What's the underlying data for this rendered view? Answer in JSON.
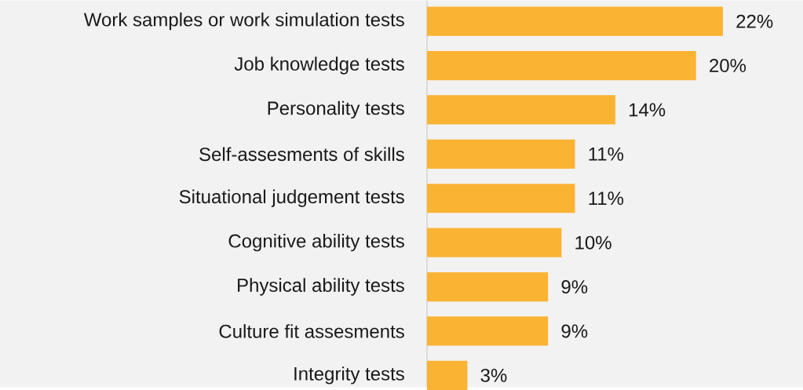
{
  "chart_data": {
    "type": "bar",
    "orientation": "horizontal",
    "categories": [
      "Work samples or work simulation tests",
      "Job knowledge tests",
      "Personality tests",
      "Self-assesments of skills",
      "Situational judgement tests",
      "Cognitive ability tests",
      "Physical ability tests",
      "Culture fit assesments",
      "Integrity tests"
    ],
    "values": [
      22,
      20,
      14,
      11,
      11,
      10,
      9,
      9,
      3
    ],
    "value_labels": [
      "22%",
      "20%",
      "14%",
      "11%",
      "11%",
      "10%",
      "9%",
      "9%",
      "3%"
    ],
    "color": "#fbb334"
  }
}
